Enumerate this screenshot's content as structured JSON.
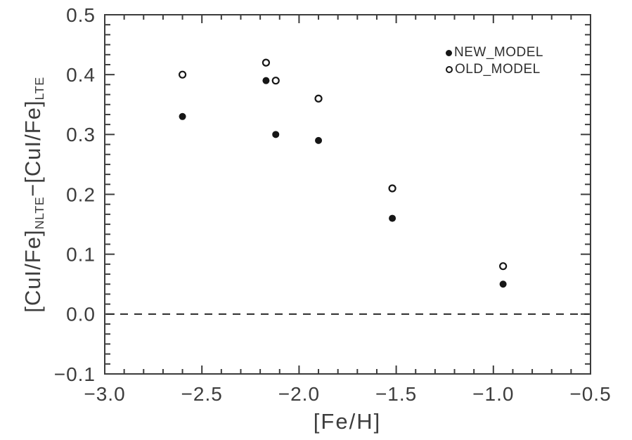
{
  "figure": {
    "background_color": "#ffffff",
    "axis_color": "#3c3c3c",
    "marker_color": "#161616",
    "text_color": "#3d3d3d"
  },
  "chart_data": {
    "type": "scatter",
    "title": "",
    "xlabel": "[Fe/H]",
    "ylabel": "[CuI/Fe]_NLTE − [CuI/Fe]_LTE",
    "ylabel_parts": [
      {
        "text": "[CuI/Fe]",
        "sub": false
      },
      {
        "text": "NLTE",
        "sub": true
      },
      {
        "text": "−",
        "sub": false
      },
      {
        "text": "[CuI/Fe]",
        "sub": false
      },
      {
        "text": "LTE",
        "sub": true
      }
    ],
    "xlim": [
      -3.0,
      -0.5
    ],
    "ylim": [
      -0.1,
      0.5
    ],
    "grid": false,
    "legend_position": "top-right-inside",
    "x_major_ticks": [
      -3.0,
      -2.5,
      -2.0,
      -1.5,
      -1.0,
      -0.5
    ],
    "x_tick_labels": [
      "−3.0",
      "−2.5",
      "−2.0",
      "−1.5",
      "−1.0",
      "−0.5"
    ],
    "x_minor_divisions": 5,
    "y_major_ticks": [
      -0.1,
      0.0,
      0.1,
      0.2,
      0.3,
      0.4,
      0.5
    ],
    "y_tick_labels": [
      "−0.1",
      "0.0",
      "0.1",
      "0.2",
      "0.3",
      "0.4",
      "0.5"
    ],
    "y_minor_divisions": 6,
    "reference_line": {
      "y": 0.0,
      "style": "dashed"
    },
    "series": [
      {
        "name": "NEW_MODEL",
        "marker": "filled-circle",
        "points": [
          [
            -2.6,
            0.33
          ],
          [
            -2.17,
            0.39
          ],
          [
            -2.12,
            0.3
          ],
          [
            -1.9,
            0.29
          ],
          [
            -1.52,
            0.16
          ],
          [
            -0.95,
            0.05
          ]
        ]
      },
      {
        "name": "OLD_MODEL",
        "marker": "open-circle",
        "points": [
          [
            -2.6,
            0.4
          ],
          [
            -2.17,
            0.42
          ],
          [
            -2.12,
            0.39
          ],
          [
            -1.9,
            0.36
          ],
          [
            -1.52,
            0.21
          ],
          [
            -0.95,
            0.08
          ]
        ]
      }
    ]
  }
}
